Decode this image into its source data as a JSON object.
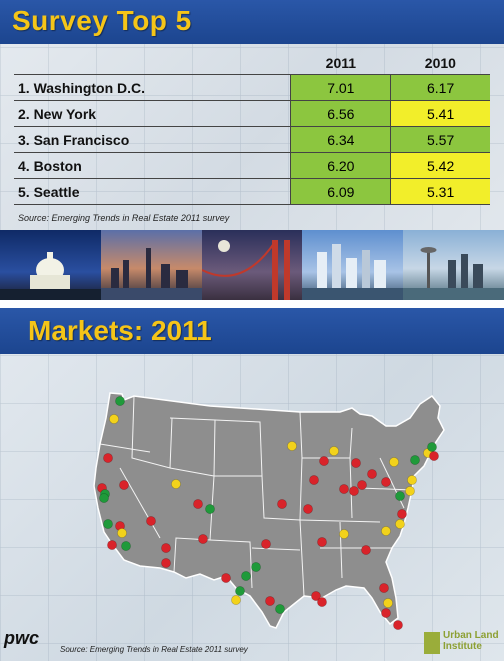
{
  "slide1": {
    "title": "Survey Top 5",
    "columns": [
      "2011",
      "2010"
    ],
    "rows": [
      {
        "label": "1.  Washington D.C.",
        "v2011": "7.01",
        "v2010": "6.17",
        "c2011": "#8cc63f",
        "c2010": "#8cc63f"
      },
      {
        "label": "2.  New York",
        "v2011": "6.56",
        "v2010": "5.41",
        "c2011": "#8cc63f",
        "c2010": "#f2ee2a"
      },
      {
        "label": "3.  San Francisco",
        "v2011": "6.34",
        "v2010": "5.57",
        "c2011": "#8cc63f",
        "c2010": "#8cc63f"
      },
      {
        "label": "4.  Boston",
        "v2011": "6.20",
        "v2010": "5.42",
        "c2011": "#8cc63f",
        "c2010": "#f2ee2a"
      },
      {
        "label": "5.  Seattle",
        "v2011": "6.09",
        "v2010": "5.31",
        "c2011": "#8cc63f",
        "c2010": "#f2ee2a"
      }
    ],
    "source": "Source: Emerging Trends in Real Estate 2011 survey",
    "photos": [
      "washington-photo",
      "new-york-photo",
      "san-francisco-photo",
      "boston-photo",
      "seattle-photo"
    ]
  },
  "slide2": {
    "title": "Markets:  2011",
    "source": "Source: Emerging Trends in Real Estate 2011 survey",
    "logo_left": "pwc",
    "logo_right_line1": "Urban Land",
    "logo_right_line2": "Institute",
    "legend_colors": {
      "green": "#1f9a3a",
      "yellow": "#f2d21b",
      "red": "#d9232a"
    }
  }
}
